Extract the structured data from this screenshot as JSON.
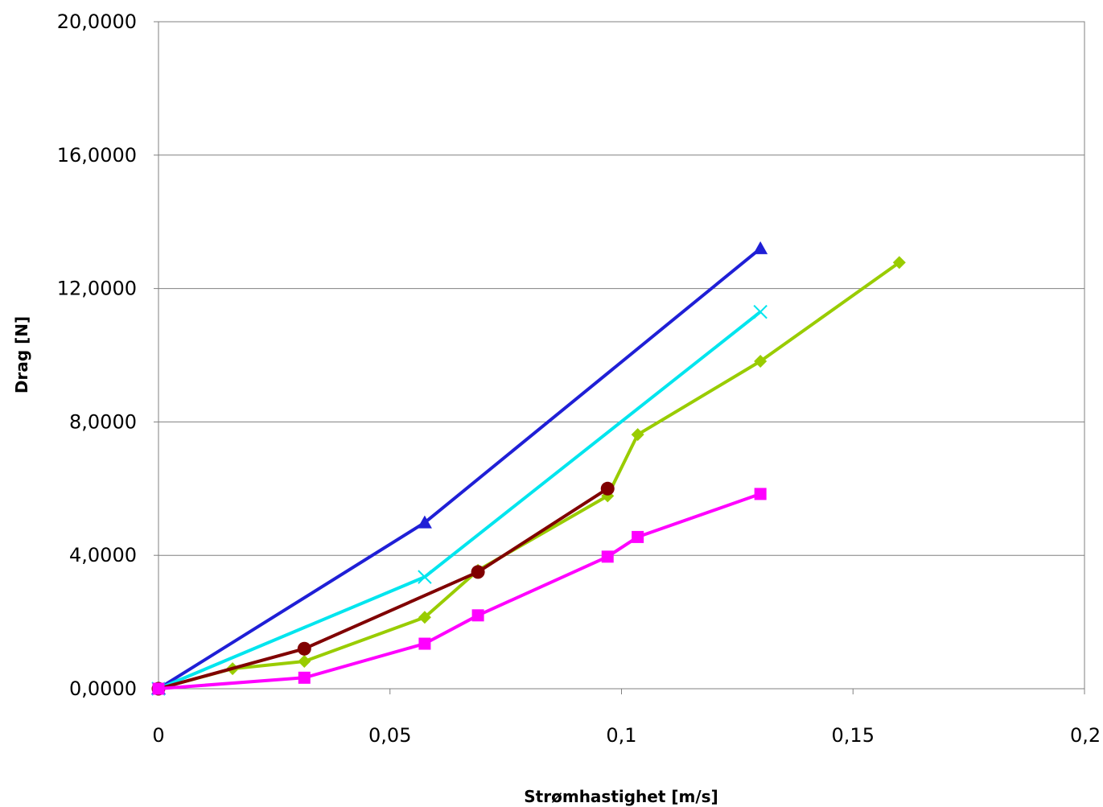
{
  "chart_data": {
    "type": "line",
    "title": "",
    "xlabel": "Strømhastighet [m/s]",
    "ylabel": "Drag [N]",
    "xlim": [
      0,
      0.2
    ],
    "ylim": [
      0,
      20
    ],
    "x_ticks": [
      {
        "value": 0,
        "label": "0"
      },
      {
        "value": 0.05,
        "label": "0,05"
      },
      {
        "value": 0.1,
        "label": "0,1"
      },
      {
        "value": 0.15,
        "label": "0,15"
      },
      {
        "value": 0.2,
        "label": "0,2"
      }
    ],
    "y_ticks": [
      {
        "value": 0,
        "label": "0,0000"
      },
      {
        "value": 4,
        "label": "4,0000"
      },
      {
        "value": 8,
        "label": "8,0000"
      },
      {
        "value": 12,
        "label": "12,0000"
      },
      {
        "value": 16,
        "label": "16,0000"
      },
      {
        "value": 20,
        "label": "20,0000"
      }
    ],
    "grid": "horizontal",
    "legend": "none",
    "series": [
      {
        "color": "#1f1fd6",
        "marker": "triangle",
        "x": [
          0,
          0.0575,
          0.13
        ],
        "y": [
          0,
          4.98,
          13.2
        ]
      },
      {
        "color": "#00e5ee",
        "marker": "x",
        "x": [
          0,
          0.0575,
          0.13
        ],
        "y": [
          0,
          3.35,
          11.3
        ]
      },
      {
        "color": "#99cc00",
        "marker": "diamond",
        "x": [
          0,
          0.016,
          0.0315,
          0.0575,
          0.069,
          0.097,
          0.1035,
          0.13,
          0.16
        ],
        "y": [
          0,
          0.6,
          0.82,
          2.14,
          3.55,
          5.78,
          7.62,
          9.82,
          12.78
        ]
      },
      {
        "color": "#800000",
        "marker": "circle",
        "x": [
          0,
          0.0315,
          0.069,
          0.097
        ],
        "y": [
          0,
          1.2,
          3.5,
          6.0
        ]
      },
      {
        "color": "#ff00ff",
        "marker": "square",
        "x": [
          0,
          0.0315,
          0.0575,
          0.069,
          0.097,
          0.1035,
          0.13
        ],
        "y": [
          0,
          0.33,
          1.35,
          2.2,
          3.96,
          4.55,
          5.84
        ]
      }
    ]
  }
}
